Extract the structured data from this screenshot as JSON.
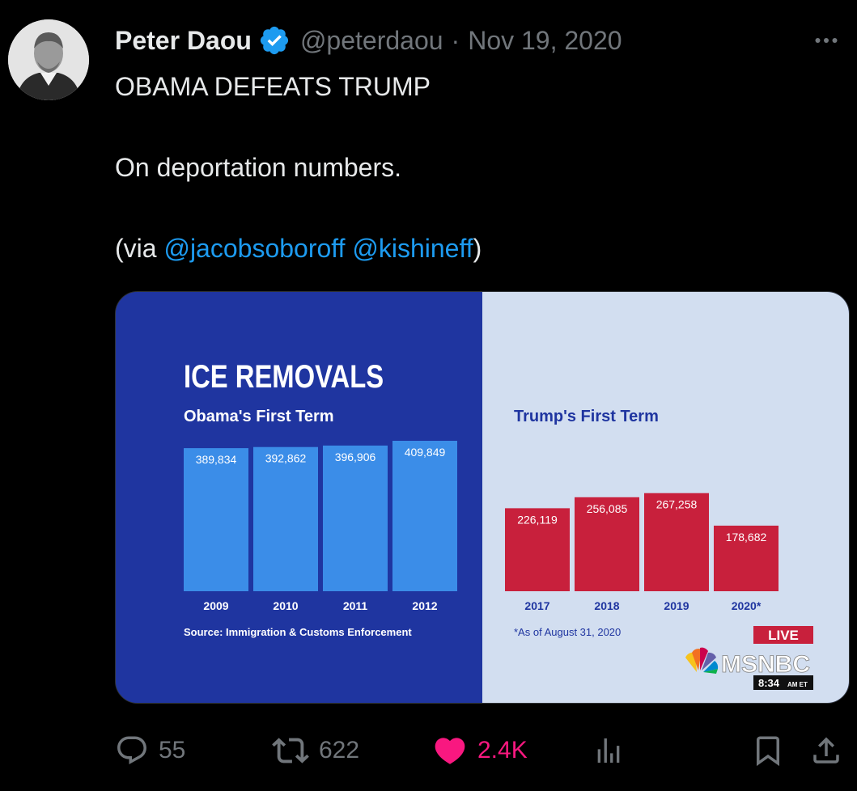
{
  "tweet": {
    "author_name": "Peter Daou",
    "handle": "@peterdaou",
    "separator": "·",
    "date": "Nov 19, 2020",
    "line1": "OBAMA DEFEATS TRUMP",
    "line2": "On deportation numbers.",
    "via_prefix": "(via ",
    "mention1": "@jacobsoboroff",
    "mention2": "@kishineff",
    "via_suffix": ")"
  },
  "icons": {
    "verified": "verified-badge-icon",
    "more": "more-dots-icon",
    "reply": "reply-icon",
    "retweet": "retweet-icon",
    "like": "heart-icon",
    "views": "analytics-icon",
    "bookmark": "bookmark-icon",
    "share": "share-icon"
  },
  "actions": {
    "replies": "55",
    "retweets": "622",
    "likes": "2.4K"
  },
  "colors": {
    "accent": "#1d9bf0",
    "like": "#f91880",
    "obama_panel": "#1f35a0",
    "trump_panel": "#d2def0",
    "obama_bar": "#3b8de8",
    "trump_bar": "#c8203c"
  },
  "chart_data": [
    {
      "type": "bar",
      "title": "ICE REMOVALS",
      "subtitle": "Obama's First Term",
      "categories": [
        "2009",
        "2010",
        "2011",
        "2012"
      ],
      "values": [
        389834,
        392862,
        396906,
        409849
      ],
      "labels": [
        "389,834",
        "392,862",
        "396,906",
        "409,849"
      ],
      "note": "Source: Immigration & Customs Enforcement"
    },
    {
      "type": "bar",
      "subtitle": "Trump's First Term",
      "categories": [
        "2017",
        "2018",
        "2019",
        "2020*"
      ],
      "values": [
        226119,
        256085,
        267258,
        178682
      ],
      "labels": [
        "226,119",
        "256,085",
        "267,258",
        "178,682"
      ],
      "note": "*As of August 31, 2020"
    }
  ],
  "broadcast": {
    "live": "LIVE",
    "network": "MSNBC",
    "time": "8:34",
    "tz": "AM ET"
  }
}
